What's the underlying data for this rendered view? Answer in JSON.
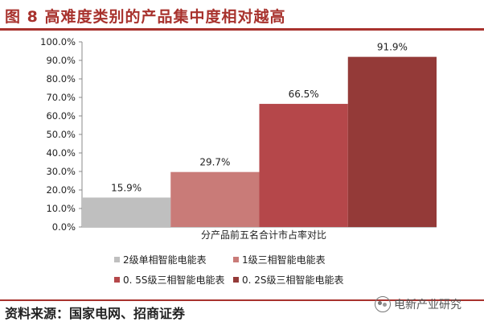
{
  "header": {
    "title": "图 8 高难度类别的产品集中度相对越高"
  },
  "footer": {
    "source": "资料来源：国家电网、招商证券",
    "watermark": "电新产业研究"
  },
  "chart_data": {
    "type": "bar",
    "xlabel": "分产品前五名合计市占率对比",
    "ylabel": "",
    "ylim": [
      0,
      100
    ],
    "yticks": [
      "0.0%",
      "10.0%",
      "20.0%",
      "30.0%",
      "40.0%",
      "50.0%",
      "60.0%",
      "70.0%",
      "80.0%",
      "90.0%",
      "100.0%"
    ],
    "legend_position": "bottom",
    "grid": false,
    "series": [
      {
        "name": "2级单相智能电能表",
        "value": 15.9,
        "label": "15.9%",
        "color": "#bfbfbf"
      },
      {
        "name": "1级三相智能电能表",
        "value": 29.7,
        "label": "29.7%",
        "color": "#c97b78"
      },
      {
        "name": "0. 5S级三相智能电能表",
        "value": 66.5,
        "label": "66.5%",
        "color": "#b5474a"
      },
      {
        "name": "0. 2S级三相智能电能表",
        "value": 91.9,
        "label": "91.9%",
        "color": "#943a38"
      }
    ]
  }
}
